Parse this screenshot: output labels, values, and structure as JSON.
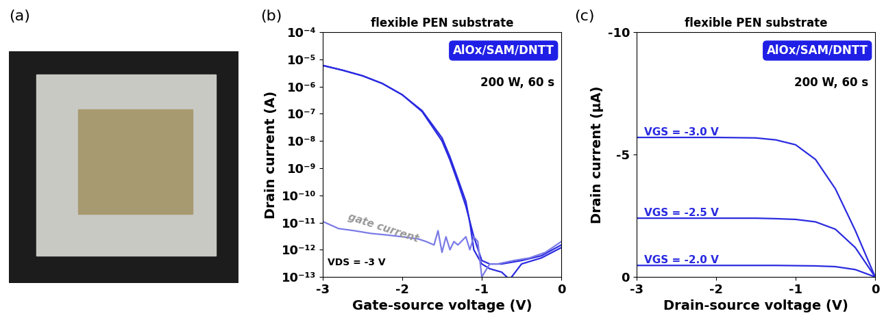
{
  "chart_data": [
    {
      "type": "image",
      "panel": "(a)"
    },
    {
      "type": "line",
      "panel": "(b)",
      "title": "flexible PEN substrate",
      "x_label": "Gate-source voltage (V)",
      "y_label": "Drain current (A)",
      "annotations": {
        "box": "AlOx/SAM/DNTT",
        "condition": "200 W, 60 s",
        "gate": "gate current",
        "bias": "VDS = -3 V"
      },
      "log": "y",
      "xlim": [
        -3,
        0
      ],
      "ylim": [
        1e-13,
        0.0001
      ],
      "xticks": [
        -3,
        -2,
        -1,
        0
      ],
      "yticks": [
        {
          "value": 1e-13,
          "label": "10⁻¹³"
        },
        {
          "value": 1e-12,
          "label": "10⁻¹²"
        },
        {
          "value": 1e-11,
          "label": "10⁻¹¹"
        },
        {
          "value": 1e-10,
          "label": "10⁻¹⁰"
        },
        {
          "value": 1e-09,
          "label": "10⁻⁹"
        },
        {
          "value": 1e-08,
          "label": "10⁻⁸"
        },
        {
          "value": 1e-07,
          "label": "10⁻⁷"
        },
        {
          "value": 1e-06,
          "label": "10⁻⁶"
        },
        {
          "value": 1e-05,
          "label": "10⁻⁵"
        },
        {
          "value": 0.0001,
          "label": "10⁻⁴"
        }
      ],
      "series": [
        {
          "color": "#2a2ae0",
          "x": [
            -3,
            -2.75,
            -2.5,
            -2.25,
            -2,
            -1.75,
            -1.5,
            -1.4,
            -1.3,
            -1.2,
            -1.1,
            -1.0,
            -0.9,
            -0.75,
            -0.5,
            -0.25,
            0
          ],
          "values": [
            6e-06,
            4e-06,
            2.5e-06,
            1.3e-06,
            5e-07,
            1.2e-07,
            1e-08,
            2e-09,
            3e-10,
            4e-11,
            3e-12,
            4e-13,
            3e-13,
            3e-13,
            4e-13,
            6e-13,
            1.5e-12
          ]
        },
        {
          "color": "#2a2ae0",
          "x": [
            -3,
            -2.75,
            -2.5,
            -2.25,
            -2,
            -1.75,
            -1.5,
            -1.4,
            -1.3,
            -1.2,
            -1.15,
            -1.1,
            -1.0,
            -0.9,
            -0.75,
            -0.65,
            -0.5,
            -0.25,
            0
          ],
          "values": [
            6e-06,
            4e-06,
            2.5e-06,
            1.3e-06,
            5e-07,
            1.3e-07,
            1.3e-08,
            2.6e-09,
            4e-10,
            6e-11,
            1e-11,
            1e-12,
            3e-13,
            2e-13,
            1.5e-13,
            8e-14,
            3e-13,
            5e-13,
            1.2e-12
          ]
        },
        {
          "color": "#7a7ae6",
          "x": [
            -3,
            -2.8,
            -2.6,
            -2.4,
            -2.2,
            -2.0,
            -1.8,
            -1.7,
            -1.6,
            -1.55,
            -1.5,
            -1.45,
            -1.4,
            -1.35,
            -1.3,
            -1.2,
            -1.15,
            -1.1,
            -1.05,
            -1.0,
            -0.9,
            -0.8,
            -0.6,
            -0.4,
            -0.2,
            0
          ],
          "values": [
            1.1e-11,
            6e-12,
            5e-12,
            4e-12,
            3.5e-12,
            3e-12,
            2.5e-12,
            2e-12,
            1.5e-12,
            5e-12,
            8e-13,
            3e-12,
            1e-12,
            2e-12,
            1.5e-12,
            3e-12,
            1e-12,
            3e-12,
            2e-12,
            1e-13,
            3e-13,
            3e-13,
            4e-13,
            5e-13,
            8e-13,
            2e-12
          ]
        }
      ]
    },
    {
      "type": "line",
      "panel": "(c)",
      "title": "flexible PEN substrate",
      "x_label": "Drain-source voltage (V)",
      "y_label": "Drain current (µA)",
      "annotations": {
        "box": "AlOx/SAM/DNTT",
        "condition": "200 W, 60 s"
      },
      "xlim": [
        -3,
        0
      ],
      "ylim": [
        0,
        -10
      ],
      "xticks": [
        -3,
        -2,
        -1,
        0
      ],
      "yticks": [
        -10,
        -5,
        0
      ],
      "series": [
        {
          "name": "VGS = -3.0 V",
          "color": "#2a2ae0",
          "x": [
            -3,
            -2.5,
            -2,
            -1.5,
            -1.25,
            -1,
            -0.75,
            -0.5,
            -0.25,
            0
          ],
          "values": [
            -5.7,
            -5.7,
            -5.7,
            -5.68,
            -5.6,
            -5.4,
            -4.8,
            -3.6,
            -1.9,
            0
          ]
        },
        {
          "name": "VGS = -2.5 V",
          "color": "#2a2ae0",
          "x": [
            -3,
            -2.5,
            -2,
            -1.5,
            -1.25,
            -1,
            -0.75,
            -0.5,
            -0.25,
            0
          ],
          "values": [
            -2.4,
            -2.4,
            -2.4,
            -2.4,
            -2.38,
            -2.35,
            -2.25,
            -1.95,
            -1.2,
            0
          ]
        },
        {
          "name": "VGS = -2.0 V",
          "color": "#2a2ae0",
          "x": [
            -3,
            -2.5,
            -2,
            -1.5,
            -1.25,
            -1,
            -0.75,
            -0.5,
            -0.25,
            0
          ],
          "values": [
            -0.47,
            -0.47,
            -0.47,
            -0.47,
            -0.47,
            -0.46,
            -0.45,
            -0.42,
            -0.3,
            0
          ]
        }
      ]
    }
  ]
}
